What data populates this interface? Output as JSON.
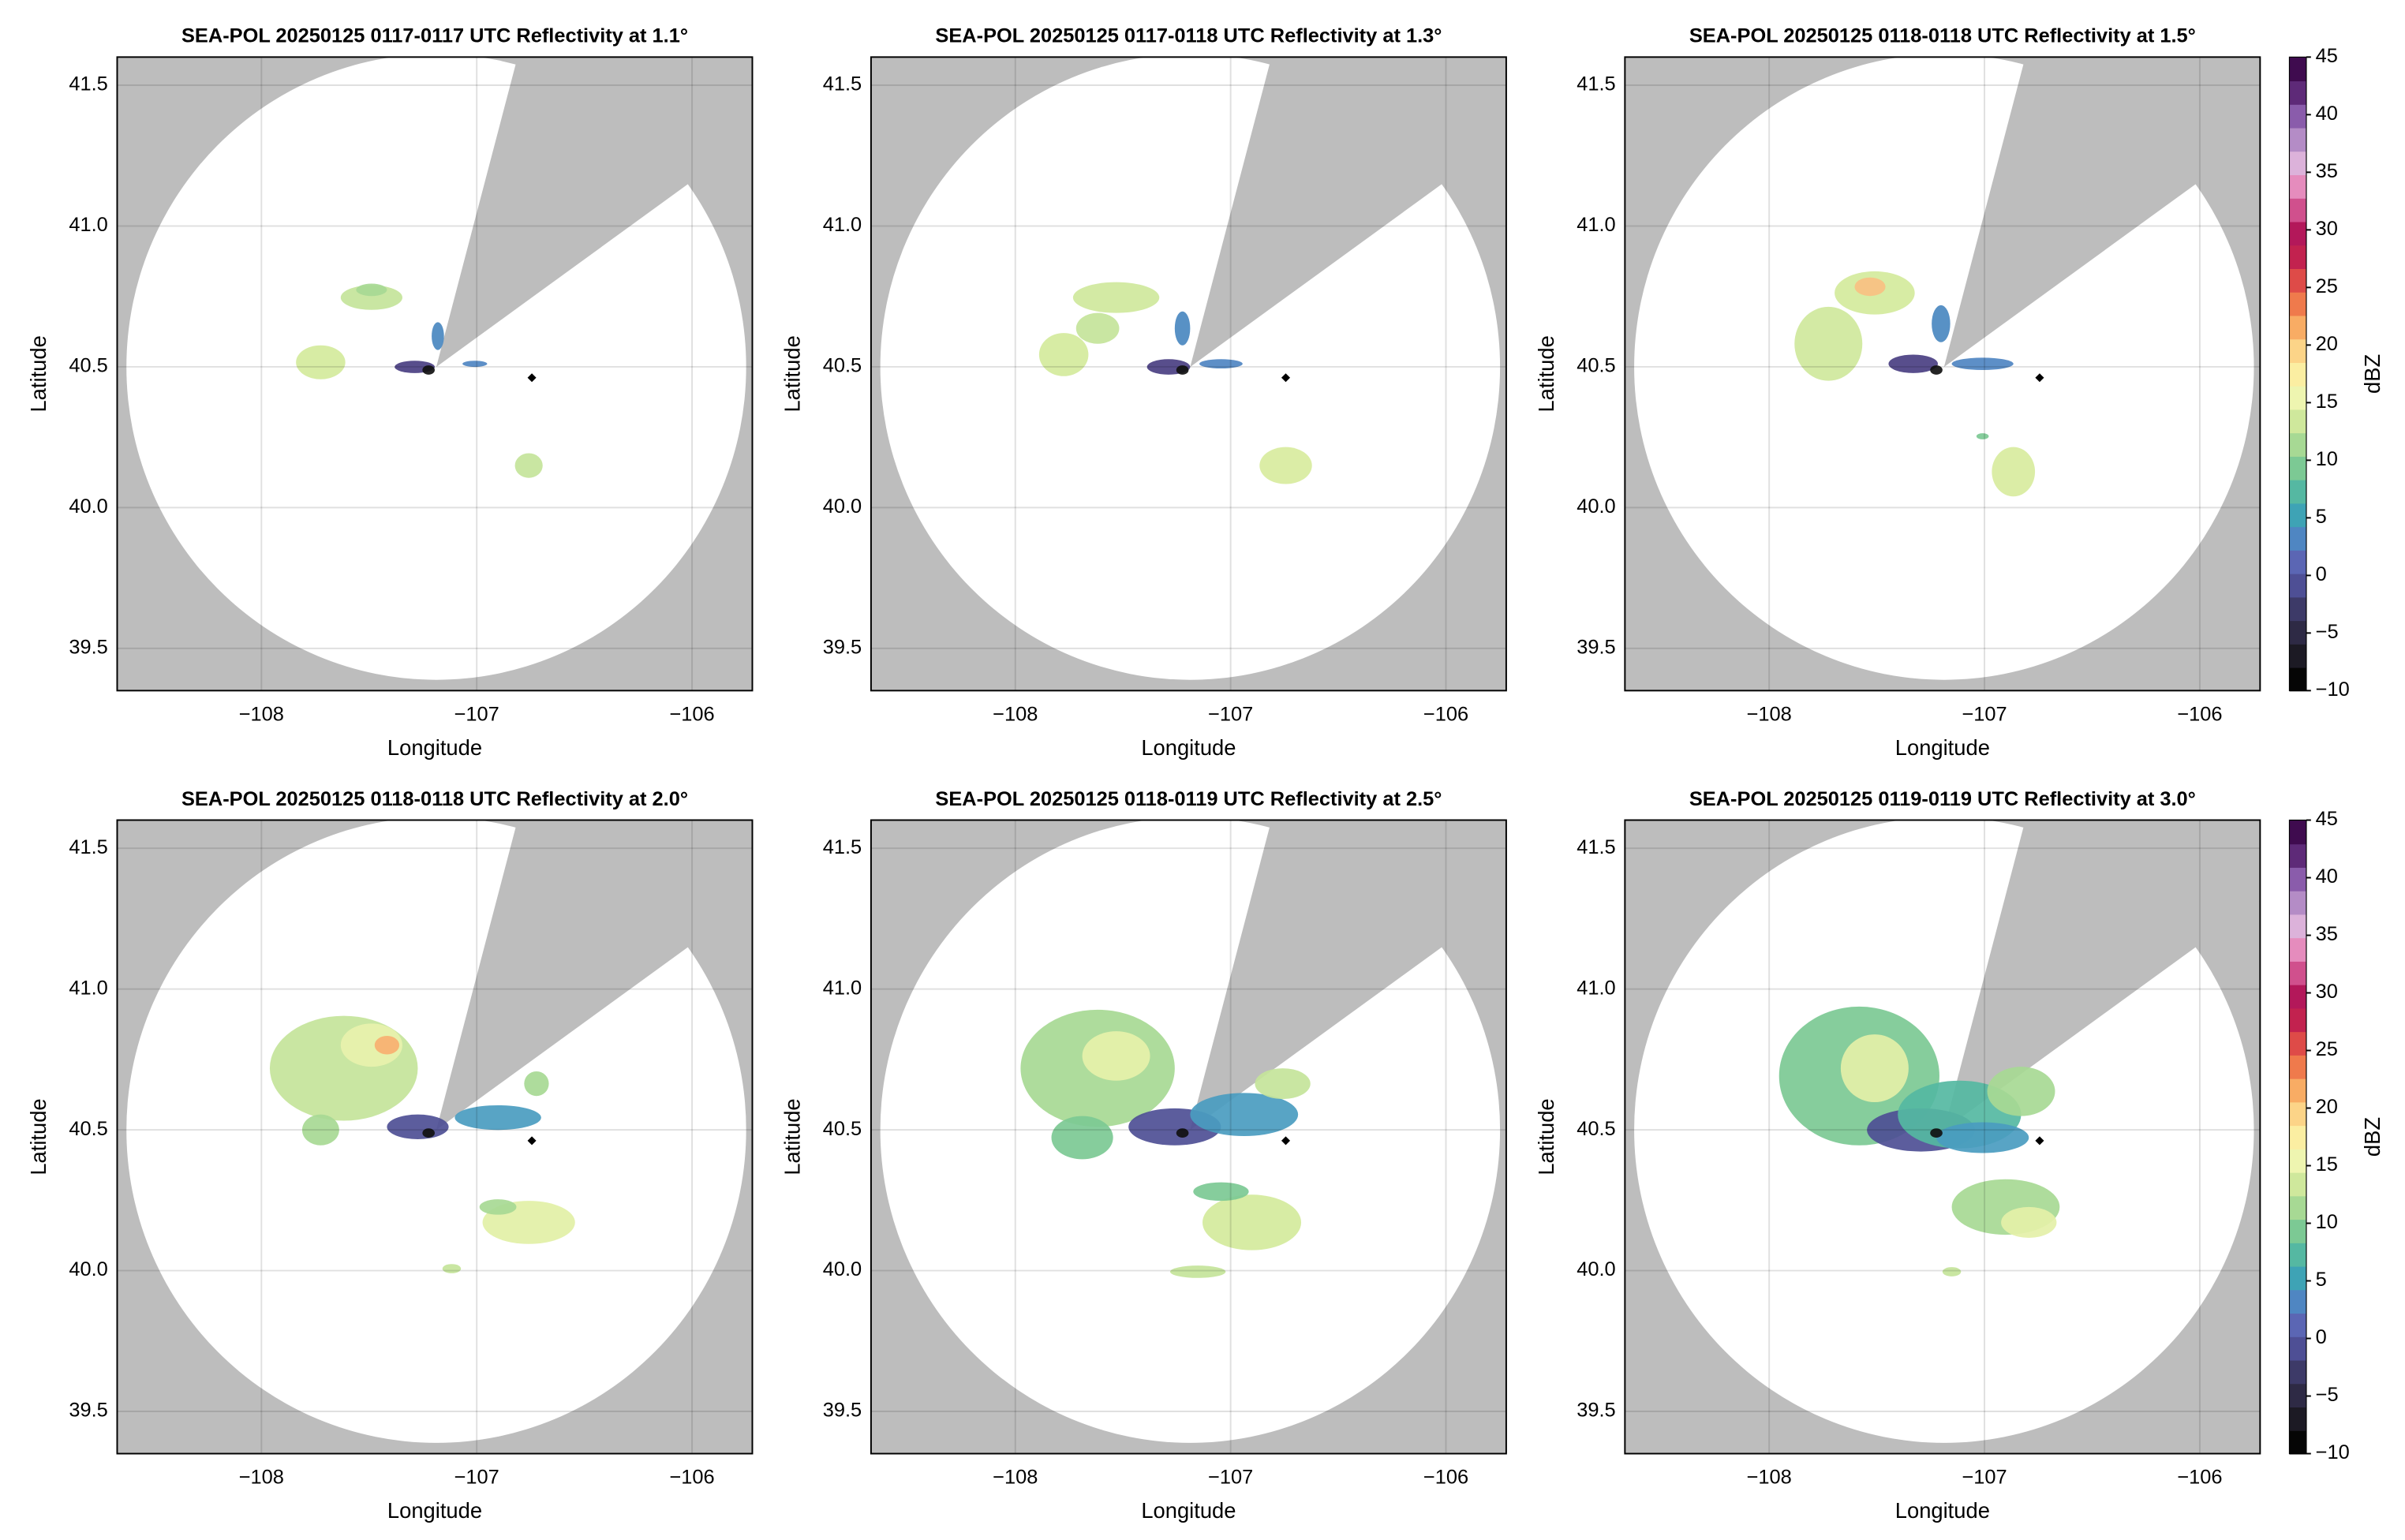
{
  "chart_data": [
    {
      "type": "radar",
      "title": "SEA-POL 20250125 0117-0117 UTC Reflectivity at 1.1°",
      "x_label": "Longitude",
      "y_label": "Latitude",
      "xlim": [
        -108.67,
        -105.72
      ],
      "ylim": [
        39.35,
        41.6
      ],
      "xticks": [
        {
          "value": -108,
          "label": "−108"
        },
        {
          "value": -107,
          "label": "−107"
        },
        {
          "value": -106,
          "label": "−106"
        }
      ],
      "yticks": [
        39.5,
        {
          "value": 40,
          "label": "40.0"
        },
        40.5,
        {
          "value": 41,
          "label": "41.0"
        },
        41.5
      ],
      "grid": true
    },
    {
      "type": "radar",
      "title": "SEA-POL 20250125 0117-0118 UTC Reflectivity at 1.3°",
      "x_label": "Longitude",
      "y_label": "Latitude",
      "xlim": [
        -108.67,
        -105.72
      ],
      "ylim": [
        39.35,
        41.6
      ],
      "xticks": [
        {
          "value": -108,
          "label": "−108"
        },
        {
          "value": -107,
          "label": "−107"
        },
        {
          "value": -106,
          "label": "−106"
        }
      ],
      "yticks": [
        39.5,
        {
          "value": 40,
          "label": "40.0"
        },
        40.5,
        {
          "value": 41,
          "label": "41.0"
        },
        41.5
      ],
      "grid": true
    },
    {
      "type": "radar",
      "title": "SEA-POL 20250125 0118-0118 UTC Reflectivity at 1.5°",
      "x_label": "Longitude",
      "y_label": "Latitude",
      "xlim": [
        -108.67,
        -105.72
      ],
      "ylim": [
        39.35,
        41.6
      ],
      "xticks": [
        {
          "value": -108,
          "label": "−108"
        },
        {
          "value": -107,
          "label": "−107"
        },
        {
          "value": -106,
          "label": "−106"
        }
      ],
      "yticks": [
        39.5,
        {
          "value": 40,
          "label": "40.0"
        },
        40.5,
        {
          "value": 41,
          "label": "41.0"
        },
        41.5
      ],
      "grid": true,
      "colorbar": {
        "label": "dBZ",
        "lim": [
          -10,
          45
        ],
        "ticks": [
          {
            "value": -10,
            "label": "−10"
          },
          {
            "value": -5,
            "label": "−5"
          },
          0,
          5,
          10,
          15,
          20,
          25,
          30,
          35,
          40,
          45
        ],
        "colors": [
          "#050505",
          "#1c1a24",
          "#2e2a45",
          "#3d3a68",
          "#4e4f95",
          "#5b66b4",
          "#4f86c2",
          "#3ea3b5",
          "#55b8a2",
          "#7cc994",
          "#a7d994",
          "#cfe89c",
          "#eef5b0",
          "#fbeea2",
          "#fcd488",
          "#f8ac64",
          "#ef7a4c",
          "#de4b48",
          "#c2224f",
          "#b3185a",
          "#d0508d",
          "#e58cbd",
          "#dcb2da",
          "#b48cc6",
          "#8a5cab",
          "#5e2a78",
          "#3f0b4f"
        ]
      }
    },
    {
      "type": "radar",
      "title": "SEA-POL 20250125 0118-0118 UTC Reflectivity at 2.0°",
      "x_label": "Longitude",
      "y_label": "Latitude",
      "xlim": [
        -108.67,
        -105.72
      ],
      "ylim": [
        39.35,
        41.6
      ],
      "xticks": [
        {
          "value": -108,
          "label": "−108"
        },
        {
          "value": -107,
          "label": "−107"
        },
        {
          "value": -106,
          "label": "−106"
        }
      ],
      "yticks": [
        39.5,
        {
          "value": 40,
          "label": "40.0"
        },
        40.5,
        {
          "value": 41,
          "label": "41.0"
        },
        41.5
      ],
      "grid": true
    },
    {
      "type": "radar",
      "title": "SEA-POL 20250125 0118-0119 UTC Reflectivity at 2.5°",
      "x_label": "Longitude",
      "y_label": "Latitude",
      "xlim": [
        -108.67,
        -105.72
      ],
      "ylim": [
        39.35,
        41.6
      ],
      "xticks": [
        {
          "value": -108,
          "label": "−108"
        },
        {
          "value": -107,
          "label": "−107"
        },
        {
          "value": -106,
          "label": "−106"
        }
      ],
      "yticks": [
        39.5,
        {
          "value": 40,
          "label": "40.0"
        },
        40.5,
        {
          "value": 41,
          "label": "41.0"
        },
        41.5
      ],
      "grid": true
    },
    {
      "type": "radar",
      "title": "SEA-POL 20250125 0119-0119 UTC Reflectivity at 3.0°",
      "x_label": "Longitude",
      "y_label": "Latitude",
      "xlim": [
        -108.67,
        -105.72
      ],
      "ylim": [
        39.35,
        41.6
      ],
      "xticks": [
        {
          "value": -108,
          "label": "−108"
        },
        {
          "value": -107,
          "label": "−107"
        },
        {
          "value": -106,
          "label": "−106"
        }
      ],
      "yticks": [
        39.5,
        {
          "value": 40,
          "label": "40.0"
        },
        40.5,
        {
          "value": 41,
          "label": "41.0"
        },
        41.5
      ],
      "grid": true,
      "colorbar": {
        "label": "dBZ",
        "lim": [
          -10,
          45
        ],
        "ticks": [
          {
            "value": -10,
            "label": "−10"
          },
          {
            "value": -5,
            "label": "−5"
          },
          0,
          5,
          10,
          15,
          20,
          25,
          30,
          35,
          40,
          45
        ],
        "colors": [
          "#050505",
          "#1c1a24",
          "#2e2a45",
          "#3d3a68",
          "#4e4f95",
          "#5b66b4",
          "#4f86c2",
          "#3ea3b5",
          "#55b8a2",
          "#7cc994",
          "#a7d994",
          "#cfe89c",
          "#eef5b0",
          "#fbeea2",
          "#fcd488",
          "#f8ac64",
          "#ef7a4c",
          "#de4b48",
          "#c2224f",
          "#b3185a",
          "#d0508d",
          "#e58cbd",
          "#dcb2da",
          "#b48cc6",
          "#8a5cab",
          "#5e2a78",
          "#3f0b4f"
        ]
      }
    }
  ]
}
